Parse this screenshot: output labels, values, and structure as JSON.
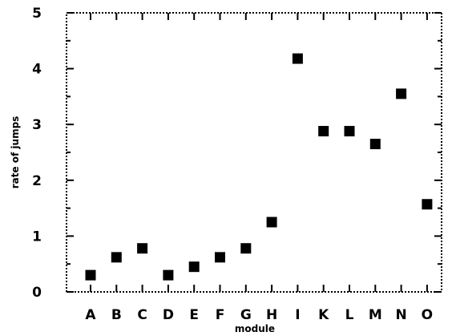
{
  "chart_data": {
    "type": "scatter",
    "title": "",
    "xlabel": "module",
    "ylabel": "rate of jumps",
    "categories": [
      "A",
      "B",
      "C",
      "D",
      "E",
      "F",
      "G",
      "H",
      "I",
      "K",
      "L",
      "M",
      "N",
      "O"
    ],
    "values": [
      0.3,
      0.62,
      0.78,
      0.3,
      0.45,
      0.62,
      0.78,
      1.25,
      4.18,
      2.88,
      2.88,
      2.65,
      3.55,
      1.57
    ],
    "ylim": [
      0,
      5
    ],
    "yticks": [
      "0",
      "1",
      "2",
      "3",
      "4",
      "5"
    ],
    "grid": false,
    "legend": "none",
    "marker": "square",
    "colors": {
      "marker": "#000000",
      "axis": "#000000",
      "background": "#ffffff"
    }
  }
}
